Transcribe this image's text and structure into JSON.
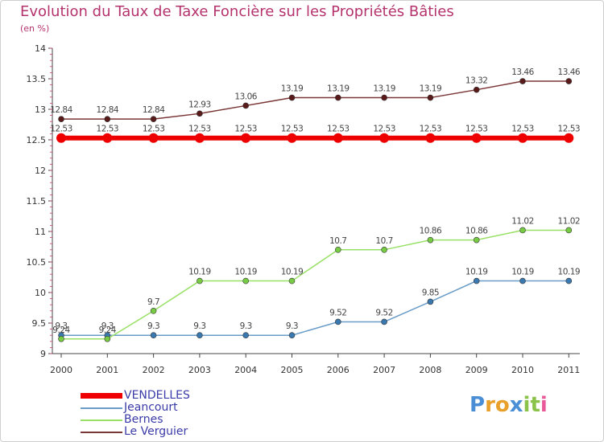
{
  "title": "Evolution du Taux de Taxe Foncière sur les Propriétés Bâties",
  "unit": "(en %)",
  "chart_data": {
    "type": "line",
    "title": "Evolution du Taux de Taxe Foncière sur les Propriétés Bâties",
    "ylabel": "(en %)",
    "xlabel": "",
    "x": [
      "2000",
      "2001",
      "2002",
      "2003",
      "2004",
      "2005",
      "2006",
      "2007",
      "2008",
      "2009",
      "2010",
      "2011"
    ],
    "ylim": [
      9,
      14
    ],
    "yticks": [
      "9",
      "9.5",
      "10",
      "10.5",
      "11",
      "11.5",
      "12",
      "12.5",
      "13",
      "13.5",
      "14"
    ],
    "grid": false,
    "legend": "bottom-left",
    "series": [
      {
        "name": "VENDELLES",
        "color": "#ee0000",
        "values": [
          12.53,
          12.53,
          12.53,
          12.53,
          12.53,
          12.53,
          12.53,
          12.53,
          12.53,
          12.53,
          12.53,
          12.53
        ],
        "labels": [
          "12.53",
          "12.53",
          "12.53",
          "12.53",
          "12.53",
          "12.53",
          "12.53",
          "12.53",
          "12.53",
          "12.53",
          "12.53",
          "12.53"
        ]
      },
      {
        "name": "Jeancourt",
        "color": "#6a9cc7",
        "marker": "#3a78b0",
        "values": [
          9.3,
          9.3,
          9.3,
          9.3,
          9.3,
          9.3,
          9.52,
          9.52,
          9.85,
          10.19,
          10.19,
          10.19
        ],
        "labels": [
          "9.3",
          "9.3",
          "9.3",
          "9.3",
          "9.3",
          "9.3",
          "9.52",
          "9.52",
          "9.85",
          "10.19",
          "10.19",
          "10.19"
        ]
      },
      {
        "name": "Bernes",
        "color": "#99e066",
        "marker": "#77cc44",
        "values": [
          9.24,
          9.24,
          9.7,
          10.19,
          10.19,
          10.19,
          10.7,
          10.7,
          10.86,
          10.86,
          11.02,
          11.02
        ],
        "labels": [
          "9.24",
          "9.24",
          "9.7",
          "10.19",
          "10.19",
          "10.19",
          "10.7",
          "10.7",
          "10.86",
          "10.86",
          "11.02",
          "11.02"
        ]
      },
      {
        "name": "Le Verguier",
        "color": "#7a3535",
        "marker": "#5a1a1a",
        "values": [
          12.84,
          12.84,
          12.84,
          12.93,
          13.06,
          13.19,
          13.19,
          13.19,
          13.19,
          13.32,
          13.46,
          13.46
        ],
        "labels": [
          "12.84",
          "12.84",
          "12.84",
          "12.93",
          "13.06",
          "13.19",
          "13.19",
          "13.19",
          "13.19",
          "13.32",
          "13.46",
          "13.46"
        ]
      }
    ]
  },
  "logo": {
    "text": "Proxiti",
    "letters": [
      "P",
      "r",
      "o",
      "x",
      "i",
      "t",
      "i"
    ],
    "colors": [
      "#4a8fd6",
      "#e8a02a",
      "#e8a02a",
      "#4a8fd6",
      "#8bc34a",
      "#8bc34a",
      "#e85a9a"
    ]
  }
}
